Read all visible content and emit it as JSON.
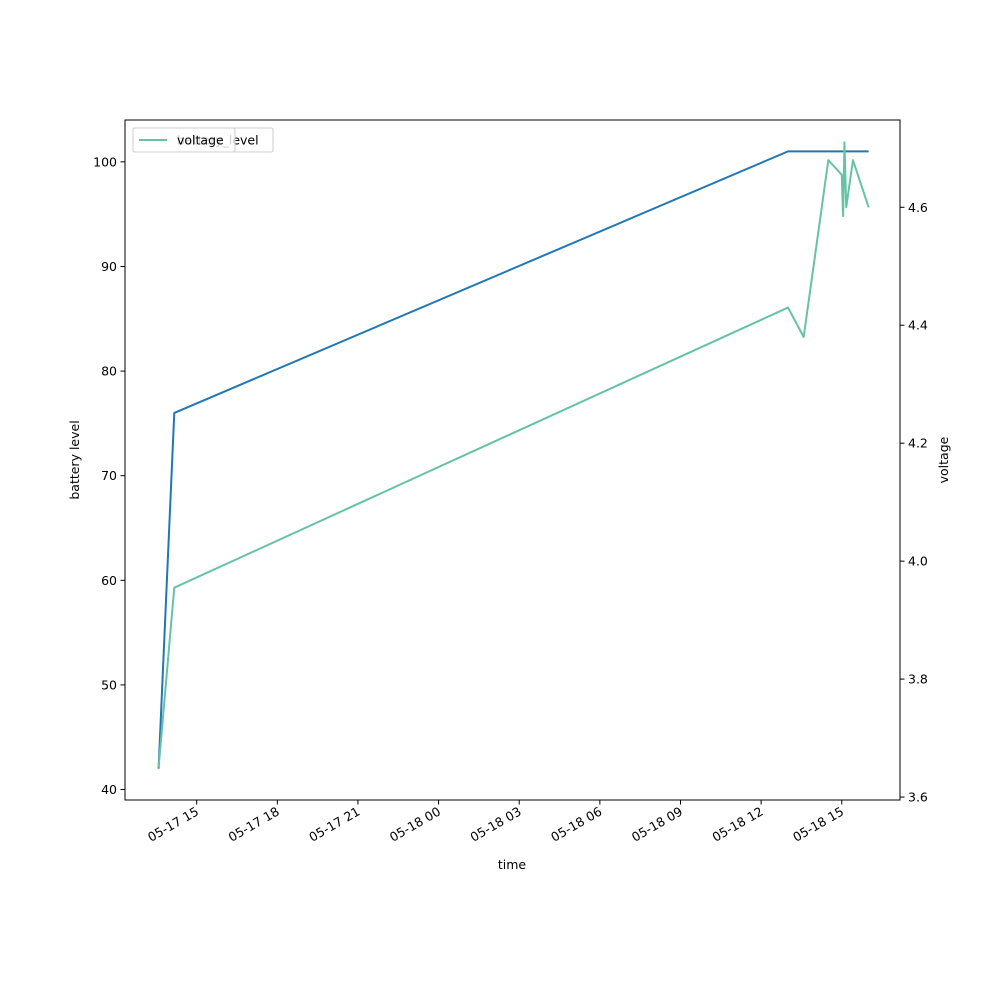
{
  "chart_data": {
    "type": "line",
    "xlabel": "time",
    "ylabel_left": "battery level",
    "ylabel_right": "voltage",
    "x_ticks": [
      "05-17 15",
      "05-17 18",
      "05-17 21",
      "05-18 00",
      "05-18 03",
      "05-18 06",
      "05-18 09",
      "05-18 12",
      "05-18 15"
    ],
    "x_tick_times": [
      "2024-05-17T15:00",
      "2024-05-17T18:00",
      "2024-05-17T21:00",
      "2024-05-18T00:00",
      "2024-05-18T03:00",
      "2024-05-18T06:00",
      "2024-05-18T09:00",
      "2024-05-18T12:00",
      "2024-05-18T15:00"
    ],
    "xlim": [
      "2024-05-17T12:20",
      "2024-05-18T17:10"
    ],
    "ylim_left": [
      39,
      104
    ],
    "yticks_left": [
      "40",
      "50",
      "60",
      "70",
      "80",
      "90",
      "100"
    ],
    "ylim_right": [
      3.595,
      4.748
    ],
    "yticks_right": [
      "3.6",
      "3.8",
      "4.0",
      "4.2",
      "4.4",
      "4.6"
    ],
    "colors": {
      "battery_level": "#1f77b4",
      "voltage": "#66c2a5",
      "axis": "#000000"
    },
    "legends": [
      {
        "label": "battery_level",
        "color": "#1f77b4",
        "position": "upper-left"
      },
      {
        "label": "voltage",
        "color": "#66c2a5",
        "position": "upper-left"
      }
    ],
    "series": [
      {
        "name": "battery_level",
        "axis": "left",
        "x": [
          "2024-05-17T13:35",
          "2024-05-17T14:10",
          "2024-05-18T13:00",
          "2024-05-18T16:00"
        ],
        "y": [
          42,
          76,
          101,
          101
        ]
      },
      {
        "name": "voltage",
        "axis": "right",
        "x": [
          "2024-05-17T13:35",
          "2024-05-17T14:10",
          "2024-05-18T13:00",
          "2024-05-18T13:35",
          "2024-05-18T14:30",
          "2024-05-18T15:00",
          "2024-05-18T15:03",
          "2024-05-18T15:06",
          "2024-05-18T15:10",
          "2024-05-18T15:25",
          "2024-05-18T16:00"
        ],
        "y": [
          3.65,
          3.955,
          4.43,
          4.38,
          4.68,
          4.655,
          4.585,
          4.71,
          4.6,
          4.68,
          4.6
        ]
      }
    ]
  }
}
